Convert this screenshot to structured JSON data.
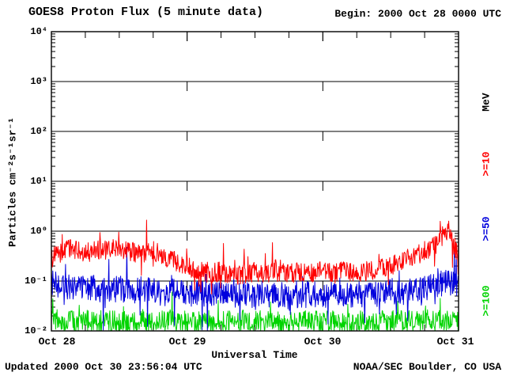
{
  "title": "GOES8 Proton Flux (5 minute data)",
  "begin_label": "Begin: 2000 Oct 28 0000 UTC",
  "footer": {
    "updated": "Updated 2000 Oct 30 23:56:04 UTC",
    "credit": "NOAA/SEC Boulder, CO USA"
  },
  "chart_data": {
    "type": "line",
    "title": "GOES8 Proton Flux (5 minute data)",
    "xlabel": "Universal Time",
    "ylabel": "Particles cm⁻²s⁻¹sr⁻¹",
    "right_axis_label": "MeV",
    "x_ticks": [
      "Oct 28",
      "Oct 29",
      "Oct 30",
      "Oct 31"
    ],
    "y_ticks": [
      "10⁴",
      "10³",
      "10²",
      "10¹",
      "10⁰",
      "10⁻¹",
      "10⁻²"
    ],
    "ylim_log10": [
      -2,
      4
    ],
    "x_range_hours": 72,
    "samples_per_hour": 12,
    "floor_log10": -2,
    "grid": "horizontal solid per decade, dashed vertical at day boundaries",
    "frame_color": "#000000",
    "series": [
      {
        "name": ">=10",
        "color": "#ff0000",
        "noise_log10": 0.2,
        "envelope_log10": [
          -0.55,
          -0.4,
          -0.35,
          -0.45,
          -0.35,
          -0.4,
          -0.3,
          -0.4,
          -0.45,
          -0.4,
          -0.5,
          -0.6,
          -0.7,
          -0.8,
          -0.85,
          -0.8,
          -0.9,
          -0.85,
          -0.8,
          -0.85,
          -0.75,
          -0.85,
          -0.8,
          -0.85,
          -0.8,
          -0.85,
          -0.8,
          -0.85,
          -0.8,
          -0.75,
          -0.7,
          -0.6,
          -0.5,
          -0.4,
          -0.25,
          0.0,
          -0.5
        ]
      },
      {
        "name": ">=50",
        "color": "#0000dd",
        "noise_log10": 0.26,
        "envelope_log10": [
          -1.05,
          -1.1,
          -1.15,
          -1.1,
          -1.15,
          -1.2,
          -1.15,
          -1.2,
          -1.15,
          -1.2,
          -1.25,
          -1.2,
          -1.25,
          -1.25,
          -1.3,
          -1.25,
          -1.3,
          -1.25,
          -1.3,
          -1.25,
          -1.3,
          -1.25,
          -1.3,
          -1.25,
          -1.3,
          -1.25,
          -1.3,
          -1.25,
          -1.3,
          -1.25,
          -1.2,
          -1.25,
          -1.2,
          -1.15,
          -1.1,
          -1.0,
          -1.1
        ]
      },
      {
        "name": ">=100",
        "color": "#00d400",
        "noise_log10": 0.22,
        "envelope_log10": [
          -1.78,
          -1.8,
          -1.82,
          -1.79,
          -1.81,
          -1.8,
          -1.83,
          -1.8,
          -1.82,
          -1.8,
          -1.81,
          -1.83,
          -1.8,
          -1.82,
          -1.8,
          -1.83,
          -1.81,
          -1.8,
          -1.82,
          -1.8,
          -1.83,
          -1.81,
          -1.8,
          -1.82,
          -1.8,
          -1.81,
          -1.83,
          -1.8,
          -1.82,
          -1.8,
          -1.81,
          -1.8,
          -1.82,
          -1.79,
          -1.8,
          -1.78,
          -1.8
        ]
      }
    ]
  }
}
